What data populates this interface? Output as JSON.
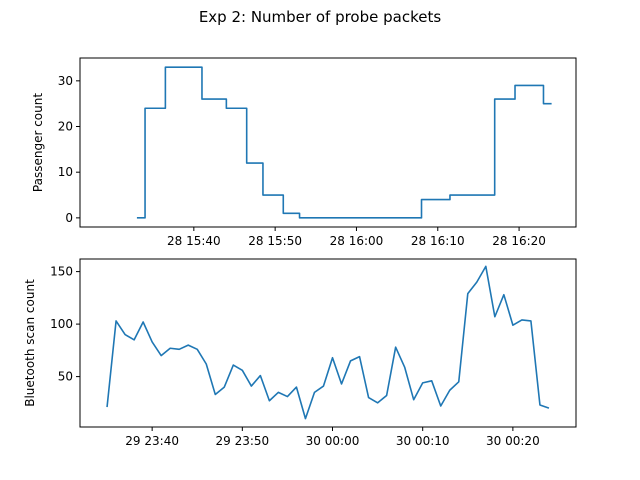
{
  "chart_data": [
    {
      "type": "line",
      "step": "post",
      "title": "Exp 2: Number of probe packets",
      "xlabel": "",
      "ylabel": "Passenger count",
      "xlim": [
        "15:26",
        "16:27"
      ],
      "ylim": [
        -2,
        35
      ],
      "xticks": [
        {
          "t": "15:40",
          "label": "28 15:40"
        },
        {
          "t": "15:50",
          "label": "28 15:50"
        },
        {
          "t": "16:00",
          "label": "28 16:00"
        },
        {
          "t": "16:10",
          "label": "28 16:10"
        },
        {
          "t": "16:20",
          "label": "28 16:20"
        }
      ],
      "yticks": [
        0,
        10,
        20,
        30
      ],
      "series": [
        {
          "name": "",
          "color": "#1f77b4",
          "x": [
            "15:33",
            "15:34",
            "15:36.5",
            "15:41",
            "15:44",
            "15:46.5",
            "15:48.5",
            "15:51",
            "15:53",
            "16:08",
            "16:11.5",
            "16:17",
            "16:19.5",
            "16:23",
            "16:24"
          ],
          "y": [
            0,
            24,
            33,
            26,
            24,
            12,
            5,
            1,
            0,
            4,
            5,
            26,
            29,
            25,
            25
          ]
        }
      ]
    },
    {
      "type": "line",
      "title": "",
      "xlabel": "",
      "ylabel": "Bluetooth scan count",
      "xlim": [
        "23:32",
        "00:27"
      ],
      "ylim": [
        2,
        162
      ],
      "xticks": [
        {
          "t": "23:40",
          "label": "29 23:40"
        },
        {
          "t": "23:50",
          "label": "29 23:50"
        },
        {
          "t": "00:00",
          "label": "30 00:00"
        },
        {
          "t": "00:10",
          "label": "30 00:10"
        },
        {
          "t": "00:20",
          "label": "30 00:20"
        }
      ],
      "yticks": [
        50,
        100,
        150
      ],
      "series": [
        {
          "name": "",
          "color": "#1f77b4",
          "x": [
            "23:35",
            "23:36",
            "23:37",
            "23:38",
            "23:39",
            "23:40",
            "23:41",
            "23:42",
            "23:43",
            "23:44",
            "23:45",
            "23:46",
            "23:47",
            "23:48",
            "23:49",
            "23:50",
            "23:51",
            "23:52",
            "23:53",
            "23:54",
            "23:55",
            "23:56",
            "23:57",
            "23:58",
            "23:59",
            "00:00",
            "00:01",
            "00:02",
            "00:03",
            "00:04",
            "00:05",
            "00:06",
            "00:07",
            "00:08",
            "00:09",
            "00:10",
            "00:11",
            "00:12",
            "00:13",
            "00:14",
            "00:15",
            "00:16",
            "00:17",
            "00:18",
            "00:19",
            "00:20",
            "00:21",
            "00:22",
            "00:23",
            "00:24"
          ],
          "y": [
            21,
            103,
            90,
            85,
            102,
            83,
            70,
            77,
            76,
            80,
            76,
            62,
            33,
            40,
            61,
            56,
            41,
            51,
            27,
            35,
            31,
            40,
            10,
            35,
            41,
            68,
            43,
            65,
            69,
            30,
            25,
            32,
            78,
            59,
            28,
            44,
            46,
            22,
            37,
            45,
            129,
            140,
            155,
            107,
            128,
            99,
            104,
            103,
            23,
            20
          ]
        }
      ]
    }
  ]
}
